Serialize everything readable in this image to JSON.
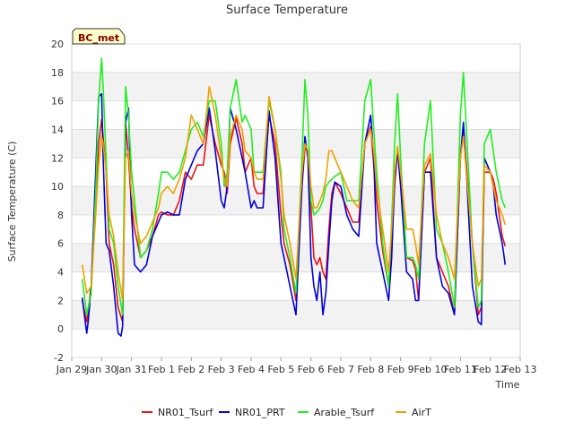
{
  "chart_data": {
    "type": "line",
    "title": "Surface Temperature",
    "xlabel": "Time",
    "ylabel": "Surface Temperature (C)",
    "badge": "BC_met",
    "ylim": [
      -2,
      20
    ],
    "yticks": [
      -2,
      0,
      2,
      4,
      6,
      8,
      10,
      12,
      14,
      16,
      18,
      20
    ],
    "xlim": [
      0,
      15
    ],
    "xticks": [
      {
        "x": 0,
        "label": "Jan 29"
      },
      {
        "x": 1,
        "label": "Jan 30"
      },
      {
        "x": 2,
        "label": "Jan 31"
      },
      {
        "x": 3,
        "label": "Feb 1"
      },
      {
        "x": 4,
        "label": "Feb 2"
      },
      {
        "x": 5,
        "label": "Feb 3"
      },
      {
        "x": 6,
        "label": "Feb 4"
      },
      {
        "x": 7,
        "label": "Feb 5"
      },
      {
        "x": 8,
        "label": "Feb 6"
      },
      {
        "x": 9,
        "label": "Feb 7"
      },
      {
        "x": 10,
        "label": "Feb 8"
      },
      {
        "x": 11,
        "label": "Feb 9"
      },
      {
        "x": 12,
        "label": "Feb 10"
      },
      {
        "x": 13,
        "label": "Feb 11"
      },
      {
        "x": 14,
        "label": "Feb 12"
      },
      {
        "x": 15,
        "label": "Feb 13"
      }
    ],
    "grid": true,
    "legend_position": "bottom",
    "series": [
      {
        "name": "NR01_Tsurf",
        "color": "#ee1111",
        "x": [
          0.35,
          0.5,
          0.65,
          0.8,
          0.9,
          1.0,
          1.05,
          1.15,
          1.25,
          1.4,
          1.55,
          1.7,
          1.8,
          1.9,
          2.0,
          2.1,
          2.3,
          2.5,
          2.7,
          2.9,
          3.0,
          3.2,
          3.4,
          3.6,
          3.8,
          4.0,
          4.2,
          4.4,
          4.6,
          4.8,
          5.0,
          5.1,
          5.2,
          5.3,
          5.5,
          5.7,
          5.8,
          6.0,
          6.1,
          6.2,
          6.4,
          6.6,
          6.8,
          7.0,
          7.1,
          7.3,
          7.5,
          7.7,
          7.8,
          7.9,
          8.0,
          8.1,
          8.2,
          8.3,
          8.4,
          8.5,
          8.6,
          8.7,
          8.8,
          9.0,
          9.2,
          9.4,
          9.6,
          9.8,
          10.0,
          10.1,
          10.2,
          10.4,
          10.6,
          10.7,
          10.8,
          10.9,
          11.0,
          11.2,
          11.4,
          11.5,
          11.6,
          11.8,
          12.0,
          12.2,
          12.4,
          12.6,
          12.8,
          13.0,
          13.1,
          13.2,
          13.4,
          13.6,
          13.7,
          13.8,
          14.0,
          14.1,
          14.2,
          14.4,
          14.5
        ],
        "y": [
          2.0,
          0.5,
          3.0,
          9.0,
          13.0,
          14.7,
          13.5,
          11.0,
          6.0,
          4.5,
          1.5,
          0.5,
          14.5,
          12.0,
          8.5,
          7.0,
          5.0,
          5.5,
          6.5,
          8.0,
          8.2,
          8.0,
          8.0,
          9.0,
          11.0,
          10.5,
          11.5,
          11.5,
          15.0,
          13.0,
          11.5,
          11.0,
          9.5,
          13.0,
          14.8,
          13.0,
          11.0,
          12.0,
          10.0,
          9.5,
          9.5,
          15.0,
          13.0,
          8.0,
          6.0,
          4.5,
          2.0,
          10.0,
          12.7,
          12.5,
          8.5,
          5.0,
          4.5,
          5.0,
          4.0,
          3.5,
          7.0,
          9.5,
          10.3,
          9.5,
          8.5,
          7.5,
          7.5,
          13.0,
          14.2,
          11.5,
          9.0,
          5.5,
          3.0,
          6.0,
          10.0,
          12.5,
          11.0,
          5.0,
          4.8,
          4.2,
          2.0,
          11.0,
          12.0,
          5.0,
          4.0,
          3.0,
          1.0,
          12.0,
          14.0,
          11.5,
          6.0,
          1.0,
          1.5,
          11.0,
          11.0,
          10.5,
          9.5,
          6.5,
          5.8
        ]
      },
      {
        "name": "NR01_PRT",
        "color": "#0000dd",
        "x": [
          0.35,
          0.5,
          0.55,
          0.65,
          0.8,
          0.9,
          1.0,
          1.05,
          1.15,
          1.25,
          1.4,
          1.55,
          1.65,
          1.7,
          1.8,
          1.9,
          2.0,
          2.1,
          2.3,
          2.5,
          2.7,
          2.9,
          3.0,
          3.2,
          3.4,
          3.6,
          3.8,
          4.0,
          4.2,
          4.4,
          4.6,
          4.8,
          5.0,
          5.1,
          5.2,
          5.3,
          5.5,
          5.7,
          5.8,
          6.0,
          6.1,
          6.2,
          6.4,
          6.6,
          6.8,
          7.0,
          7.1,
          7.3,
          7.5,
          7.7,
          7.8,
          7.9,
          8.0,
          8.1,
          8.2,
          8.3,
          8.4,
          8.5,
          8.6,
          8.7,
          8.8,
          9.0,
          9.2,
          9.4,
          9.6,
          9.8,
          10.0,
          10.1,
          10.2,
          10.4,
          10.6,
          10.7,
          10.8,
          10.9,
          11.0,
          11.2,
          11.4,
          11.5,
          11.6,
          11.8,
          12.0,
          12.2,
          12.4,
          12.6,
          12.8,
          13.0,
          13.1,
          13.2,
          13.4,
          13.6,
          13.7,
          13.8,
          14.0,
          14.1,
          14.2,
          14.4,
          14.5
        ],
        "y": [
          2.2,
          -0.3,
          0.5,
          3.0,
          11.0,
          16.3,
          16.5,
          12.0,
          6.0,
          5.5,
          3.0,
          -0.3,
          -0.5,
          0.2,
          14.5,
          15.5,
          8.0,
          4.5,
          4.0,
          4.5,
          6.5,
          7.5,
          8.0,
          8.2,
          8.0,
          8.0,
          10.5,
          11.5,
          12.5,
          13.0,
          15.5,
          12.5,
          9.0,
          8.5,
          10.0,
          15.5,
          14.0,
          12.0,
          11.0,
          8.5,
          9.0,
          8.5,
          8.5,
          15.3,
          12.0,
          6.0,
          5.0,
          3.0,
          1.0,
          10.0,
          13.5,
          12.0,
          5.0,
          3.0,
          2.0,
          4.0,
          1.0,
          2.5,
          6.0,
          9.0,
          10.3,
          10.0,
          8.0,
          7.0,
          6.5,
          13.0,
          15.0,
          12.0,
          6.0,
          4.0,
          2.0,
          5.0,
          10.5,
          12.5,
          10.0,
          4.0,
          3.5,
          2.0,
          2.0,
          11.0,
          11.0,
          5.0,
          3.0,
          2.5,
          1.0,
          12.0,
          14.5,
          11.0,
          3.0,
          0.5,
          0.3,
          12.0,
          11.0,
          10.0,
          8.0,
          6.0,
          4.5
        ]
      },
      {
        "name": "Arable_Tsurf",
        "color": "#22ee22",
        "x": [
          0.35,
          0.5,
          0.65,
          0.8,
          0.9,
          1.0,
          1.05,
          1.15,
          1.25,
          1.4,
          1.55,
          1.7,
          1.8,
          1.9,
          2.0,
          2.1,
          2.3,
          2.5,
          2.7,
          2.9,
          3.0,
          3.2,
          3.4,
          3.6,
          3.8,
          4.0,
          4.2,
          4.4,
          4.6,
          4.8,
          5.0,
          5.1,
          5.2,
          5.3,
          5.5,
          5.7,
          5.8,
          6.0,
          6.1,
          6.2,
          6.4,
          6.6,
          6.8,
          7.0,
          7.1,
          7.3,
          7.5,
          7.7,
          7.8,
          7.9,
          8.0,
          8.1,
          8.2,
          8.3,
          8.4,
          8.5,
          8.6,
          8.7,
          8.8,
          9.0,
          9.2,
          9.4,
          9.6,
          9.8,
          10.0,
          10.1,
          10.2,
          10.4,
          10.6,
          10.7,
          10.8,
          10.9,
          11.0,
          11.2,
          11.4,
          11.5,
          11.6,
          11.8,
          12.0,
          12.2,
          12.4,
          12.6,
          12.8,
          13.0,
          13.1,
          13.2,
          13.4,
          13.6,
          13.7,
          13.8,
          14.0,
          14.1,
          14.2,
          14.4,
          14.5
        ],
        "y": [
          3.5,
          1.0,
          2.5,
          9.5,
          16.0,
          19.0,
          17.0,
          12.0,
          7.0,
          6.0,
          3.0,
          1.0,
          17.0,
          15.0,
          11.0,
          9.0,
          5.0,
          5.5,
          7.0,
          9.5,
          11.0,
          11.0,
          10.5,
          11.0,
          12.5,
          14.0,
          14.5,
          13.5,
          16.0,
          16.0,
          13.0,
          10.0,
          11.0,
          15.5,
          17.5,
          14.5,
          15.0,
          14.0,
          11.0,
          11.0,
          11.0,
          16.0,
          14.0,
          11.0,
          7.0,
          5.0,
          2.5,
          12.0,
          17.5,
          15.0,
          9.0,
          8.0,
          8.2,
          8.5,
          9.0,
          10.0,
          10.3,
          10.5,
          10.7,
          11.0,
          9.0,
          9.0,
          9.0,
          16.0,
          17.5,
          14.0,
          11.0,
          6.0,
          3.0,
          7.5,
          13.0,
          16.5,
          12.0,
          5.0,
          5.0,
          4.5,
          3.5,
          13.0,
          16.0,
          7.0,
          6.0,
          4.0,
          1.5,
          15.0,
          18.0,
          14.0,
          6.0,
          1.5,
          2.0,
          13.0,
          14.0,
          12.5,
          11.0,
          9.0,
          8.5
        ]
      },
      {
        "name": "AirT",
        "color": "#f0a000",
        "x": [
          0.35,
          0.5,
          0.65,
          0.8,
          0.9,
          1.0,
          1.05,
          1.15,
          1.25,
          1.4,
          1.55,
          1.7,
          1.8,
          1.9,
          2.0,
          2.1,
          2.3,
          2.5,
          2.7,
          2.9,
          3.0,
          3.2,
          3.4,
          3.6,
          3.8,
          4.0,
          4.2,
          4.4,
          4.6,
          4.8,
          5.0,
          5.1,
          5.2,
          5.3,
          5.5,
          5.7,
          5.8,
          6.0,
          6.1,
          6.2,
          6.4,
          6.6,
          6.8,
          7.0,
          7.1,
          7.3,
          7.5,
          7.7,
          7.8,
          7.9,
          8.0,
          8.1,
          8.2,
          8.3,
          8.4,
          8.5,
          8.6,
          8.7,
          8.8,
          9.0,
          9.2,
          9.4,
          9.6,
          9.8,
          10.0,
          10.1,
          10.2,
          10.4,
          10.6,
          10.7,
          10.8,
          10.9,
          11.0,
          11.2,
          11.4,
          11.5,
          11.6,
          11.8,
          12.0,
          12.2,
          12.4,
          12.6,
          12.8,
          13.0,
          13.1,
          13.2,
          13.4,
          13.6,
          13.7,
          13.8,
          14.0,
          14.1,
          14.2,
          14.4,
          14.5
        ],
        "y": [
          4.5,
          2.5,
          3.0,
          8.0,
          11.5,
          13.5,
          13.0,
          11.0,
          8.0,
          6.5,
          4.0,
          2.0,
          12.0,
          12.5,
          9.5,
          8.0,
          6.0,
          6.5,
          7.5,
          8.5,
          9.5,
          10.0,
          9.5,
          10.5,
          12.0,
          15.0,
          14.0,
          13.0,
          17.0,
          15.0,
          12.0,
          10.5,
          10.0,
          13.5,
          15.0,
          14.0,
          12.5,
          12.0,
          11.0,
          10.5,
          10.5,
          16.3,
          14.0,
          10.5,
          8.0,
          6.0,
          3.5,
          11.0,
          13.0,
          12.5,
          10.0,
          8.5,
          8.5,
          9.0,
          9.5,
          10.5,
          12.5,
          12.5,
          12.0,
          11.0,
          10.0,
          9.0,
          8.5,
          13.0,
          14.0,
          12.5,
          10.0,
          7.0,
          4.0,
          7.0,
          11.0,
          12.8,
          11.0,
          7.0,
          7.0,
          6.0,
          4.5,
          11.5,
          12.3,
          8.0,
          6.0,
          5.0,
          3.5,
          12.0,
          13.5,
          11.0,
          6.0,
          3.0,
          3.5,
          11.5,
          11.0,
          10.0,
          9.0,
          8.0,
          7.3
        ]
      }
    ]
  }
}
